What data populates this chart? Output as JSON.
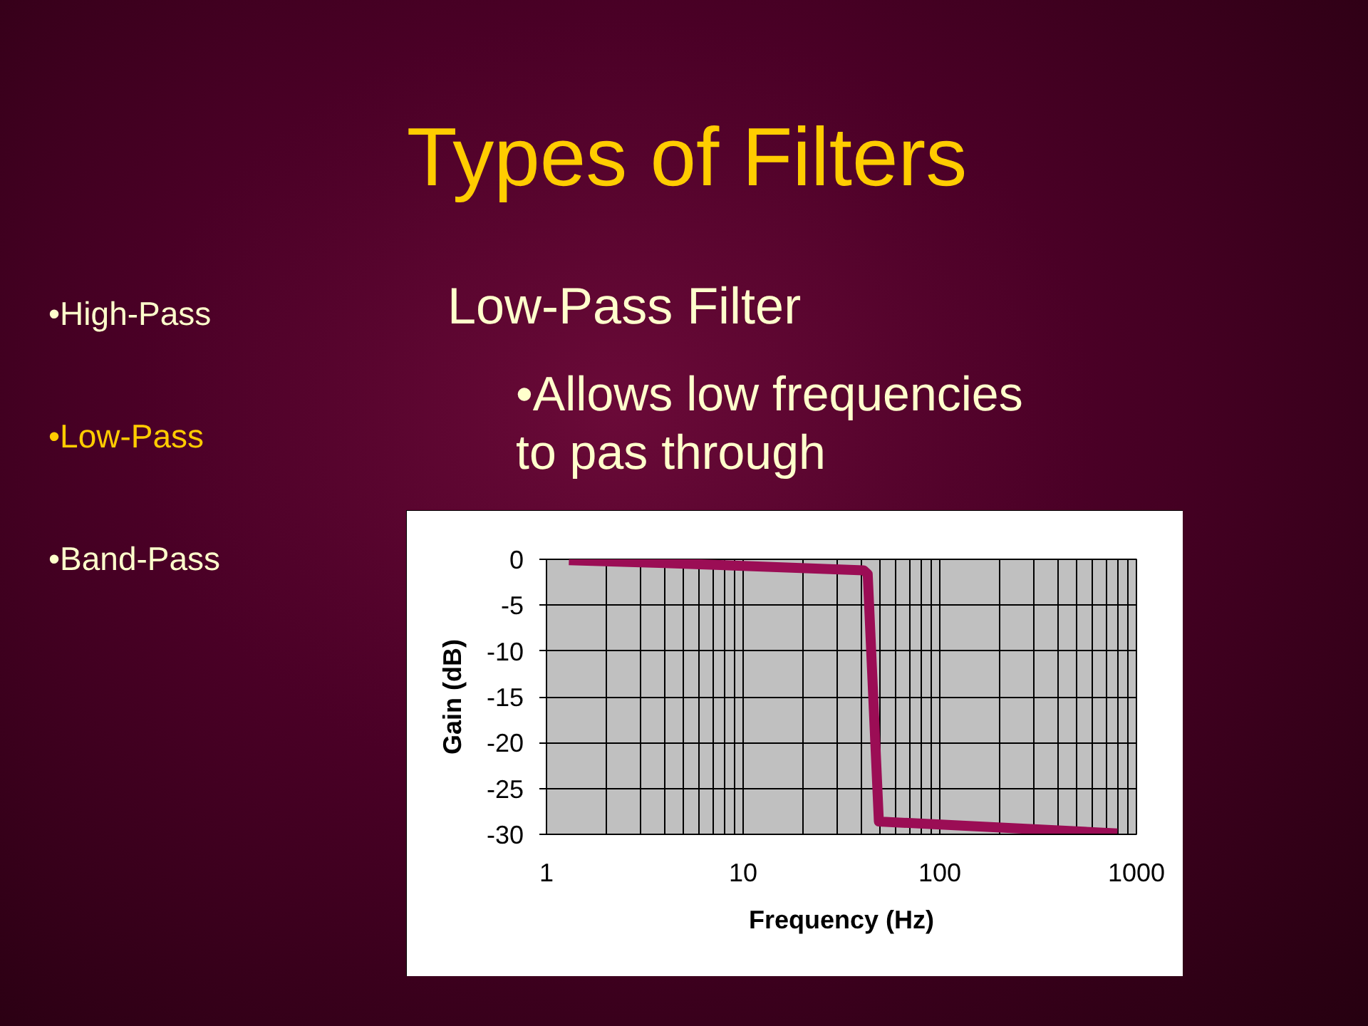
{
  "chart_data": {
    "type": "line",
    "title": "Types of Filters",
    "subtitle": "Low-Pass Filter",
    "annotations": [
      "•High-Pass",
      "•Low-Pass",
      "•Band-Pass",
      "•Allows low frequencies to pas through"
    ],
    "xlabel": "Frequency (Hz)",
    "ylabel": "Gain (dB)",
    "x": [
      1.3,
      4,
      41,
      43,
      49,
      800
    ],
    "series": [
      {
        "color": "#9b0d55",
        "values": [
          -0.1,
          -0.4,
          -1.2,
          -1.6,
          -28.6,
          -29.9
        ]
      }
    ],
    "log": "x",
    "xlim": [
      1,
      1000
    ],
    "xticks": [
      1,
      {
        "value": 2,
        "label": null
      },
      {
        "value": 3,
        "label": null
      },
      {
        "value": 4,
        "label": null
      },
      {
        "value": 5,
        "label": null
      },
      {
        "value": 6,
        "label": null
      },
      {
        "value": 7,
        "label": null
      },
      {
        "value": 8,
        "label": null
      },
      {
        "value": 9,
        "label": null
      },
      10,
      {
        "value": 20,
        "label": null
      },
      {
        "value": 30,
        "label": null
      },
      {
        "value": 40,
        "label": null
      },
      {
        "value": 50,
        "label": null
      },
      {
        "value": 60,
        "label": null
      },
      {
        "value": 70,
        "label": null
      },
      {
        "value": 80,
        "label": null
      },
      {
        "value": 90,
        "label": null
      },
      100,
      {
        "value": 200,
        "label": null
      },
      {
        "value": 300,
        "label": null
      },
      {
        "value": 400,
        "label": null
      },
      {
        "value": 500,
        "label": null
      },
      {
        "value": 600,
        "label": null
      },
      {
        "value": 700,
        "label": null
      },
      {
        "value": 800,
        "label": null
      },
      {
        "value": 900,
        "label": null
      },
      1000
    ],
    "ylim": [
      -30,
      0
    ],
    "yticks": [
      0,
      -5,
      -10,
      -15,
      -20,
      -25,
      -30
    ],
    "grid": true,
    "line_style": "solid"
  }
}
